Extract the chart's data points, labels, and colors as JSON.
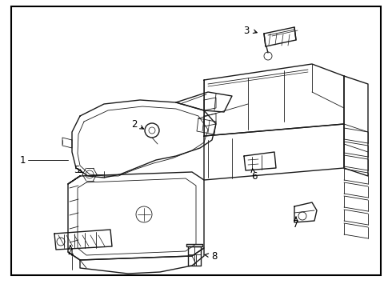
{
  "background_color": "#ffffff",
  "border_color": "#000000",
  "border_linewidth": 1.5,
  "fig_width": 4.9,
  "fig_height": 3.6,
  "dpi": 100,
  "line_color": "#1a1a1a",
  "label_color": "#000000",
  "label_fontsize": 8.5
}
